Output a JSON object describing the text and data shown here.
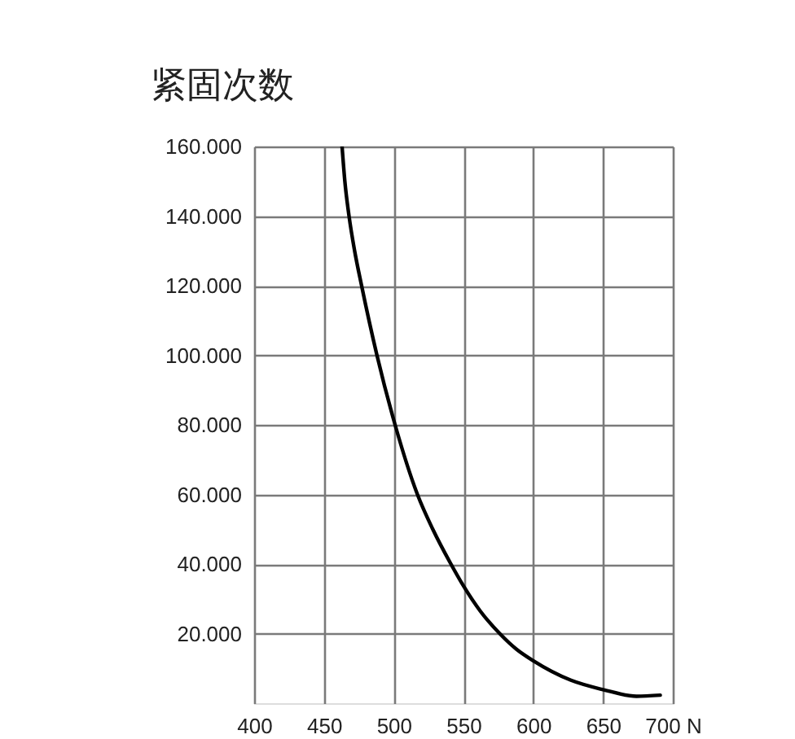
{
  "chart_data": {
    "type": "line",
    "ylabel": "紧固次数",
    "x": [
      463,
      465,
      468,
      472,
      477,
      488,
      501,
      517,
      528,
      541,
      550,
      562,
      576,
      588,
      600,
      627,
      650,
      674,
      691
    ],
    "series": [
      {
        "color": "#000000",
        "values": [
          160000,
          150000,
          140000,
          130000,
          120000,
          100000,
          80000,
          60000,
          50000,
          40000,
          33700,
          26500,
          20000,
          15500,
          12200,
          6600,
          3900,
          2000,
          2300
        ]
      }
    ],
    "xlim": [
      400,
      700
    ],
    "ylim": [
      0,
      160000
    ],
    "xticks": [
      400,
      450,
      500,
      550,
      600,
      650,
      {
        "value": 700,
        "label": "700 N"
      }
    ],
    "yticks": [
      {
        "value": 20000,
        "label": "20.000"
      },
      {
        "value": 40000,
        "label": "40.000"
      },
      {
        "value": 60000,
        "label": "60.000"
      },
      {
        "value": 80000,
        "label": "80.000"
      },
      {
        "value": 100000,
        "label": "100.000"
      },
      {
        "value": 120000,
        "label": "120.000"
      },
      {
        "value": 140000,
        "label": "140.000"
      },
      {
        "value": 160000,
        "label": "160.000"
      }
    ],
    "grid": true
  }
}
